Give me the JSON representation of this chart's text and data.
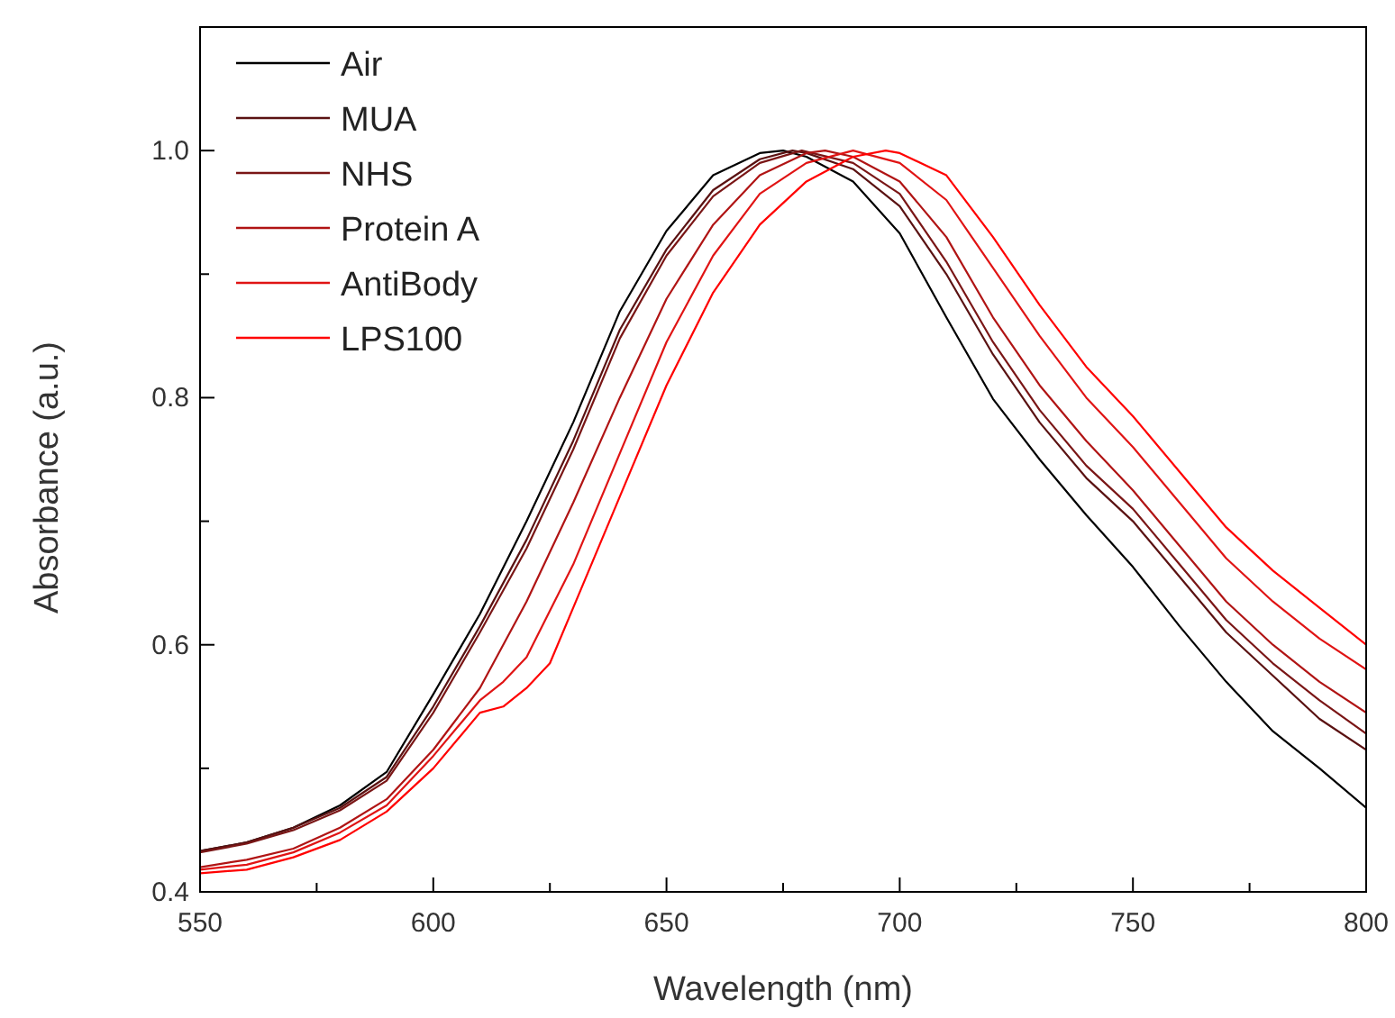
{
  "chart_data": {
    "type": "line",
    "xlabel": "Wavelength (nm)",
    "ylabel": "Absorbance (a.u.)",
    "xlim": [
      550,
      800
    ],
    "ylim": [
      0.4,
      1.1
    ],
    "xticks": [
      550,
      {
        "value": 575,
        "label": null
      },
      600,
      {
        "value": 625,
        "label": null
      },
      650,
      {
        "value": 675,
        "label": null
      },
      700,
      {
        "value": 725,
        "label": null
      },
      750,
      {
        "value": 775,
        "label": null
      },
      800
    ],
    "yticks": [
      0.4,
      {
        "value": 0.5,
        "label": null
      },
      0.6,
      {
        "value": 0.7,
        "label": null
      },
      0.8,
      {
        "value": 0.9,
        "label": null
      },
      {
        "value": 1,
        "label": "1.0"
      }
    ],
    "legend": "top left",
    "grid": false,
    "marker": "none",
    "line_style": "solid",
    "series": [
      {
        "name": "Air",
        "color": "#000000",
        "x": [
          550,
          560,
          570,
          580,
          590,
          600,
          610,
          620,
          630,
          640,
          650,
          660,
          670,
          675,
          680,
          690,
          700,
          710,
          720,
          730,
          740,
          750,
          760,
          770,
          780,
          790,
          800
        ],
        "values": [
          0.433,
          0.44,
          0.452,
          0.47,
          0.497,
          0.56,
          0.625,
          0.7,
          0.78,
          0.87,
          0.935,
          0.98,
          0.998,
          1.0,
          0.995,
          0.975,
          0.933,
          0.865,
          0.799,
          0.75,
          0.705,
          0.663,
          0.615,
          0.57,
          0.53,
          0.5,
          0.468
        ]
      },
      {
        "name": "MUA",
        "color": "#5a1212",
        "x": [
          550,
          560,
          570,
          580,
          590,
          600,
          610,
          620,
          630,
          640,
          650,
          660,
          670,
          677,
          680,
          690,
          700,
          710,
          720,
          730,
          740,
          750,
          760,
          770,
          780,
          790,
          800
        ],
        "values": [
          0.433,
          0.44,
          0.452,
          0.468,
          0.493,
          0.55,
          0.615,
          0.685,
          0.765,
          0.855,
          0.92,
          0.968,
          0.993,
          1.0,
          0.998,
          0.985,
          0.955,
          0.9,
          0.835,
          0.78,
          0.735,
          0.7,
          0.655,
          0.61,
          0.575,
          0.54,
          0.515
        ]
      },
      {
        "name": "NHS",
        "color": "#7a1616",
        "x": [
          550,
          560,
          570,
          580,
          590,
          600,
          610,
          620,
          630,
          640,
          650,
          660,
          670,
          679,
          690,
          700,
          710,
          720,
          730,
          740,
          750,
          760,
          770,
          780,
          790,
          800
        ],
        "values": [
          0.432,
          0.439,
          0.45,
          0.466,
          0.49,
          0.545,
          0.61,
          0.678,
          0.758,
          0.848,
          0.915,
          0.963,
          0.99,
          1.0,
          0.99,
          0.965,
          0.91,
          0.845,
          0.79,
          0.745,
          0.71,
          0.665,
          0.62,
          0.585,
          0.555,
          0.528
        ]
      },
      {
        "name": "Protein A",
        "color": "#b01414",
        "x": [
          550,
          560,
          570,
          580,
          590,
          600,
          610,
          620,
          630,
          640,
          650,
          660,
          670,
          680,
          684,
          690,
          700,
          710,
          720,
          730,
          740,
          750,
          760,
          770,
          780,
          790,
          800
        ],
        "values": [
          0.42,
          0.426,
          0.435,
          0.452,
          0.475,
          0.515,
          0.565,
          0.635,
          0.715,
          0.8,
          0.88,
          0.94,
          0.98,
          0.998,
          1.0,
          0.995,
          0.975,
          0.93,
          0.865,
          0.81,
          0.765,
          0.725,
          0.68,
          0.635,
          0.6,
          0.57,
          0.545
        ]
      },
      {
        "name": "AntiBody",
        "color": "#e01414",
        "x": [
          550,
          560,
          570,
          580,
          590,
          600,
          610,
          615,
          620,
          630,
          640,
          650,
          660,
          670,
          680,
          690,
          700,
          710,
          720,
          730,
          740,
          750,
          760,
          770,
          780,
          790,
          800
        ],
        "values": [
          0.418,
          0.422,
          0.432,
          0.448,
          0.47,
          0.51,
          0.555,
          0.57,
          0.59,
          0.665,
          0.755,
          0.845,
          0.915,
          0.965,
          0.99,
          1.0,
          0.99,
          0.96,
          0.905,
          0.85,
          0.8,
          0.76,
          0.715,
          0.67,
          0.635,
          0.605,
          0.58
        ]
      },
      {
        "name": "LPS100",
        "color": "#ff0000",
        "x": [
          550,
          560,
          570,
          580,
          590,
          600,
          610,
          615,
          620,
          625,
          630,
          640,
          650,
          660,
          670,
          680,
          690,
          697,
          700,
          710,
          720,
          730,
          740,
          750,
          760,
          770,
          780,
          790,
          800
        ],
        "values": [
          0.415,
          0.418,
          0.428,
          0.442,
          0.465,
          0.5,
          0.545,
          0.55,
          0.565,
          0.585,
          0.63,
          0.72,
          0.81,
          0.885,
          0.94,
          0.975,
          0.995,
          1.0,
          0.998,
          0.98,
          0.93,
          0.875,
          0.825,
          0.785,
          0.74,
          0.695,
          0.66,
          0.63,
          0.6
        ]
      }
    ]
  }
}
